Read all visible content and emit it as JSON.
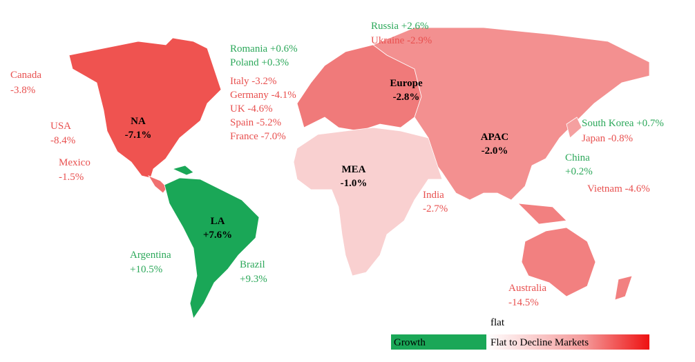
{
  "regions": [
    {
      "name": "NA",
      "change": "-7.1%"
    },
    {
      "name": "LA",
      "change": "+7.6%"
    },
    {
      "name": "MEA",
      "change": "-1.0%"
    },
    {
      "name": "Europe",
      "change": "-2.8%"
    },
    {
      "name": "APAC",
      "change": "-2.0%"
    }
  ],
  "countries": [
    {
      "name": "Canada",
      "change": "-3.8%"
    },
    {
      "name": "USA",
      "change": "-8.4%"
    },
    {
      "name": "Mexico",
      "change": "-1.5%"
    },
    {
      "name": "Romania",
      "change": "+0.6%"
    },
    {
      "name": "Poland",
      "change": "+0.3%"
    },
    {
      "name": "Italy",
      "change": "-3.2%"
    },
    {
      "name": "Germany",
      "change": "-4.1%"
    },
    {
      "name": "UK",
      "change": "-4.6%"
    },
    {
      "name": "Spain",
      "change": "-5.2%"
    },
    {
      "name": "France",
      "change": "-7.0%"
    },
    {
      "name": "Russia",
      "change": "+2.6%"
    },
    {
      "name": "Ukraine",
      "change": "-2.9%"
    },
    {
      "name": "South Korea",
      "change": "+0.7%"
    },
    {
      "name": "Japan",
      "change": "-0.8%"
    },
    {
      "name": "China",
      "change": "+0.2%"
    },
    {
      "name": "Vietnam",
      "change": "-4.6%"
    },
    {
      "name": "India",
      "change": "-2.7%"
    },
    {
      "name": "Australia",
      "change": "-14.5%"
    },
    {
      "name": "Argentina",
      "change": "+10.5%"
    },
    {
      "name": "Brazil",
      "change": "+9.3%"
    }
  ],
  "legend": {
    "flat": "flat",
    "growth": "Growth",
    "decline": "Flat to Decline Markets"
  }
}
